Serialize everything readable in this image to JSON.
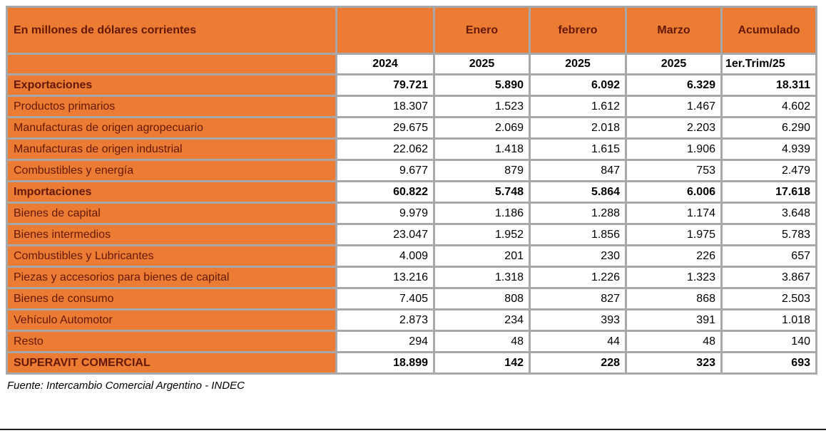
{
  "chart_data": {
    "type": "table",
    "title": "En millones de dólares corrientes",
    "header_months": [
      "Enero",
      "febrero",
      "Marzo",
      "Acumulado"
    ],
    "header_periods": [
      "2024",
      "2025",
      "2025",
      "2025",
      "1er.Trim/25"
    ],
    "rows": [
      {
        "label": "Exportaciones",
        "bold": true,
        "values": [
          "79.721",
          "5.890",
          "6.092",
          "6.329",
          "18.311"
        ]
      },
      {
        "label": "Productos primarios",
        "bold": false,
        "values": [
          "18.307",
          "1.523",
          "1.612",
          "1.467",
          "4.602"
        ]
      },
      {
        "label": "Manufacturas de origen agropecuario",
        "bold": false,
        "values": [
          "29.675",
          "2.069",
          "2.018",
          "2.203",
          "6.290"
        ]
      },
      {
        "label": "Manufacturas de origen industrial",
        "bold": false,
        "values": [
          "22.062",
          "1.418",
          "1.615",
          "1.906",
          "4.939"
        ]
      },
      {
        "label": "Combustibles y energía",
        "bold": false,
        "values": [
          "9.677",
          "879",
          "847",
          "753",
          "2.479"
        ]
      },
      {
        "label": "Importaciones",
        "bold": true,
        "values": [
          "60.822",
          "5.748",
          "5.864",
          "6.006",
          "17.618"
        ]
      },
      {
        "label": "Bienes de capital",
        "bold": false,
        "values": [
          "9.979",
          "1.186",
          "1.288",
          "1.174",
          "3.648"
        ]
      },
      {
        "label": "Bienes intermedios",
        "bold": false,
        "values": [
          "23.047",
          "1.952",
          "1.856",
          "1.975",
          "5.783"
        ]
      },
      {
        "label": "Combustibles y Lubricantes",
        "bold": false,
        "values": [
          "4.009",
          "201",
          "230",
          "226",
          "657"
        ]
      },
      {
        "label": "Piezas y accesorios para bienes de capital",
        "bold": false,
        "values": [
          "13.216",
          "1.318",
          "1.226",
          "1.323",
          "3.867"
        ]
      },
      {
        "label": "Bienes de consumo",
        "bold": false,
        "values": [
          "7.405",
          "808",
          "827",
          "868",
          "2.503"
        ]
      },
      {
        "label": "Vehículo Automotor",
        "bold": false,
        "values": [
          "2.873",
          "234",
          "393",
          "391",
          "1.018"
        ]
      },
      {
        "label": "Resto",
        "bold": false,
        "values": [
          "294",
          "48",
          "44",
          "48",
          "140"
        ]
      },
      {
        "label": "SUPERAVIT COMERCIAL",
        "bold": true,
        "values": [
          "18.899",
          "142",
          "228",
          "323",
          "693"
        ]
      }
    ],
    "source": "Fuente: Intercambio Comercial Argentino - INDEC"
  },
  "colors": {
    "orange": "#ec7c33",
    "header_text": "#641808",
    "border_gray": "#a8a8a8",
    "value_text": "#000000"
  }
}
